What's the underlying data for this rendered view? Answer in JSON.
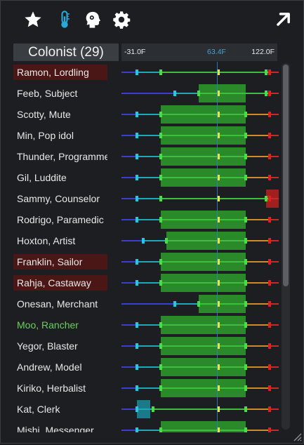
{
  "toolbar": {
    "icons": [
      "star-icon",
      "thermometer-icon",
      "mood-head-icon",
      "gear-icon",
      "expand-arrow-icon"
    ]
  },
  "header": {
    "colonist_label": "Colonist (29)"
  },
  "scale": {
    "min_label": "-31.0F",
    "mid_label": "63.4F",
    "max_label": "122.0F",
    "min": -31.0,
    "mid": 63.4,
    "max": 122.0
  },
  "colors": {
    "blue_line": "#3b3fd0",
    "cyan_line": "#1ea8b8",
    "green_line": "#3fbf3f",
    "orange_line": "#d08a2a",
    "red_line": "#c42a2a",
    "box_green": "#2a8a2a",
    "box_red": "#a01f1f",
    "box_teal": "#1a7a8a",
    "cyan_tick": "#22c8e8",
    "green_tick": "#46e046",
    "yellow_tick": "#e6e64a",
    "red_tick": "#e02020",
    "highlight_row": "#4a1616",
    "mid_line": "#2f80c0"
  },
  "colonists": [
    {
      "name": "Ramon, Lordling",
      "highlight": true,
      "name_color": "normal",
      "temps": {
        "cold": -16,
        "comfort_min": 7,
        "comfort_max": 110,
        "heat": 113
      },
      "box": null
    },
    {
      "name": "Feeb, Subject",
      "highlight": false,
      "name_color": "normal",
      "temps": {
        "cold": 21,
        "comfort_min": 44,
        "comfort_max": 110,
        "heat": 113
      },
      "box": {
        "from": 44,
        "to": 90,
        "color": "green"
      }
    },
    {
      "name": "Scotty, Mute",
      "highlight": false,
      "name_color": "normal",
      "temps": {
        "cold": -16,
        "comfort_min": 7,
        "comfort_max": 90,
        "heat": 113
      },
      "box": {
        "from": 7,
        "to": 90,
        "color": "green"
      }
    },
    {
      "name": "Min, Pop idol",
      "highlight": false,
      "name_color": "normal",
      "temps": {
        "cold": -16,
        "comfort_min": 7,
        "comfort_max": 90,
        "heat": 113
      },
      "box": {
        "from": 7,
        "to": 90,
        "color": "green"
      }
    },
    {
      "name": "Thunder, Programmer",
      "highlight": false,
      "name_color": "normal",
      "temps": {
        "cold": -16,
        "comfort_min": 7,
        "comfort_max": 90,
        "heat": 113
      },
      "box": {
        "from": 7,
        "to": 90,
        "color": "green"
      }
    },
    {
      "name": "Gil, Luddite",
      "highlight": false,
      "name_color": "normal",
      "temps": {
        "cold": -16,
        "comfort_min": 7,
        "comfort_max": 90,
        "heat": 113
      },
      "box": {
        "from": 7,
        "to": 90,
        "color": "green"
      }
    },
    {
      "name": "Sammy, Counselor",
      "highlight": false,
      "name_color": "normal",
      "temps": {
        "cold": -16,
        "comfort_min": 7,
        "comfort_max": 110,
        "heat": 113
      },
      "box": {
        "from": 110,
        "to": 122,
        "color": "red"
      }
    },
    {
      "name": "Rodrigo, Paramedic",
      "highlight": false,
      "name_color": "normal",
      "temps": {
        "cold": -16,
        "comfort_min": 7,
        "comfort_max": 90,
        "heat": 113
      },
      "box": {
        "from": 7,
        "to": 90,
        "color": "green"
      }
    },
    {
      "name": "Hoxton, Artist",
      "highlight": false,
      "name_color": "normal",
      "temps": {
        "cold": -10,
        "comfort_min": 13,
        "comfort_max": 90,
        "heat": 113
      },
      "box": {
        "from": 13,
        "to": 90,
        "color": "green"
      }
    },
    {
      "name": "Franklin, Sailor",
      "highlight": true,
      "name_color": "normal",
      "temps": {
        "cold": -16,
        "comfort_min": 7,
        "comfort_max": 90,
        "heat": 113
      },
      "box": {
        "from": 7,
        "to": 90,
        "color": "green"
      }
    },
    {
      "name": "Rahja, Castaway",
      "highlight": true,
      "name_color": "normal",
      "temps": {
        "cold": -16,
        "comfort_min": 7,
        "comfort_max": 90,
        "heat": 113
      },
      "box": {
        "from": 7,
        "to": 90,
        "color": "green"
      }
    },
    {
      "name": "Onesan, Merchant",
      "highlight": false,
      "name_color": "normal",
      "temps": {
        "cold": 21,
        "comfort_min": 44,
        "comfort_max": 90,
        "heat": 113
      },
      "box": {
        "from": 44,
        "to": 90,
        "color": "green"
      }
    },
    {
      "name": "Moo, Rancher",
      "highlight": false,
      "name_color": "green",
      "temps": {
        "cold": -16,
        "comfort_min": 7,
        "comfort_max": 90,
        "heat": 113
      },
      "box": {
        "from": 7,
        "to": 90,
        "color": "green"
      }
    },
    {
      "name": "Yegor, Blaster",
      "highlight": false,
      "name_color": "normal",
      "temps": {
        "cold": -16,
        "comfort_min": 7,
        "comfort_max": 90,
        "heat": 113
      },
      "box": {
        "from": 7,
        "to": 90,
        "color": "green"
      }
    },
    {
      "name": "Andrew, Model",
      "highlight": false,
      "name_color": "normal",
      "temps": {
        "cold": -16,
        "comfort_min": 7,
        "comfort_max": 90,
        "heat": 113
      },
      "box": {
        "from": 7,
        "to": 90,
        "color": "green"
      }
    },
    {
      "name": "Kiriko, Herbalist",
      "highlight": false,
      "name_color": "normal",
      "temps": {
        "cold": -16,
        "comfort_min": 7,
        "comfort_max": 90,
        "heat": 113
      },
      "box": {
        "from": 7,
        "to": 90,
        "color": "green"
      }
    },
    {
      "name": "Kat, Clerk",
      "highlight": false,
      "name_color": "normal",
      "temps": {
        "cold": -16,
        "comfort_min": 0,
        "comfort_max": 90,
        "heat": 113
      },
      "box": {
        "from": -16,
        "to": -3,
        "color": "teal"
      }
    },
    {
      "name": "Mishi, Messenger",
      "highlight": false,
      "name_color": "normal",
      "temps": {
        "cold": -16,
        "comfort_min": 7,
        "comfort_max": 90,
        "heat": 113
      },
      "box": {
        "from": 7,
        "to": 90,
        "color": "green"
      }
    }
  ]
}
